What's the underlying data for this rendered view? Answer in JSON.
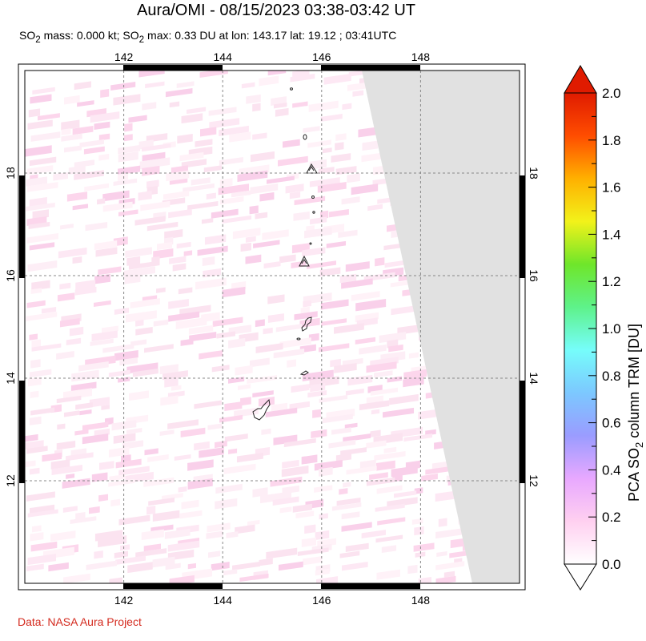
{
  "title": "Aura/OMI - 08/15/2023 03:38-03:42 UT",
  "subtitle": {
    "text_html": "SO<sub>2</sub> mass: 0.000 kt; SO<sub>2</sub> max: 0.33 DU at lon: 143.17 lat: 19.12 ; 03:41UTC"
  },
  "credit": "Data: NASA Aura Project",
  "map": {
    "lon_range": [
      140,
      150
    ],
    "lat_range": [
      10,
      20
    ],
    "lon_ticks": [
      "142",
      "144",
      "146",
      "148"
    ],
    "lat_ticks": [
      "12",
      "14",
      "16",
      "18"
    ],
    "no_data_color": "#e1e1e1",
    "grid": true
  },
  "colorbar": {
    "title": "PCA SO2 column TRM [DU]",
    "title_main": "PCA SO",
    "title_sub": "2",
    "title_rest": " column TRM [DU]",
    "labels": [
      "0.0",
      "0.2",
      "0.4",
      "0.6",
      "0.8",
      "1.0",
      "1.2",
      "1.4",
      "1.6",
      "1.8",
      "2.0"
    ],
    "min": 0.0,
    "max": 2.0,
    "colors": [
      "#ffffff",
      "#ffd0f0",
      "#e8a8ff",
      "#9a9cff",
      "#7cc8ff",
      "#76fdfb",
      "#5ef28a",
      "#6fe62a",
      "#f2f21a",
      "#ffb000",
      "#ff4d00",
      "#e01b00"
    ]
  }
}
